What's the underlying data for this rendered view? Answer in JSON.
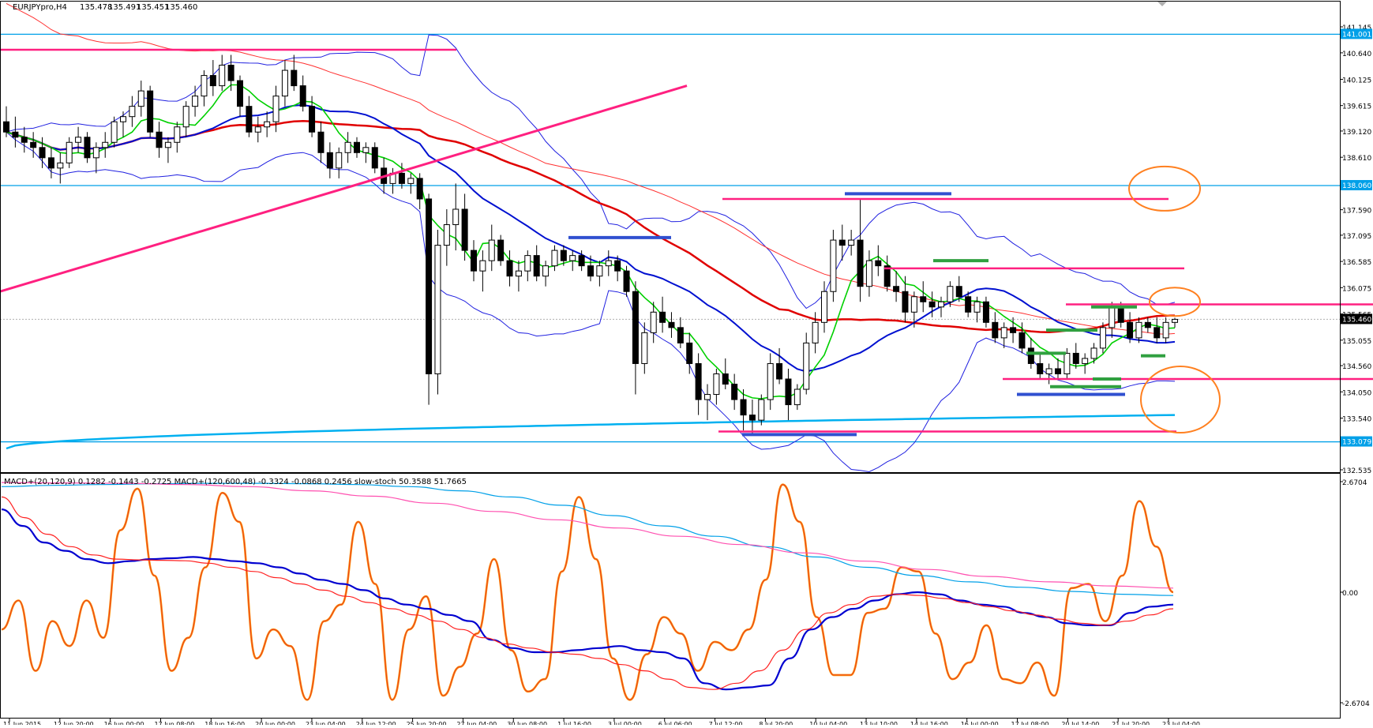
{
  "chart_data": [
    {
      "type": "candlestick",
      "header": {
        "symbol_label": "EURJPYpro,H4",
        "ohlc": [
          "135.478",
          "135.491",
          "135.451",
          "135.460"
        ]
      },
      "y_axis_ticks": [
        "141.145",
        "140.640",
        "140.125",
        "139.615",
        "139.120",
        "138.610",
        "138.060",
        "137.590",
        "137.095",
        "136.585",
        "136.075",
        "135.565",
        "135.055",
        "134.560",
        "134.050",
        "133.540",
        "133.079",
        "132.535"
      ],
      "y_axis_tick_values": [
        141.145,
        140.64,
        140.125,
        139.615,
        139.12,
        138.61,
        138.06,
        137.59,
        137.095,
        136.585,
        136.075,
        135.565,
        135.055,
        134.56,
        134.05,
        133.54,
        133.079,
        132.535
      ],
      "ylim": [
        132.535,
        141.145
      ],
      "price_labels": [
        {
          "text": "141.001",
          "value": 141.001,
          "color": "#00a0e8"
        },
        {
          "text": "138.060",
          "value": 138.06,
          "color": "#00a0e8"
        },
        {
          "text": "135.460",
          "value": 135.46,
          "color": "#000000"
        },
        {
          "text": "133.079",
          "value": 133.079,
          "color": "#00a0e8"
        }
      ],
      "horizontal_levels": [
        {
          "value": 141.001,
          "color": "#00a0e8",
          "style": "solid"
        },
        {
          "value": 138.06,
          "color": "#00a0e8",
          "style": "solid"
        },
        {
          "value": 133.079,
          "color": "#00a0e8",
          "style": "solid"
        },
        {
          "value": 135.46,
          "color": "#b0b0b0",
          "style": "dotted"
        }
      ],
      "x_axis_ticks": [
        "11 Jun 2015",
        "12 Jun 20:00",
        "16 Jun 00:00",
        "17 Jun 08:00",
        "18 Jun 16:00",
        "20 Jun 00:00",
        "23 Jun 04:00",
        "24 Jun 12:00",
        "25 Jun 20:00",
        "27 Jun 04:00",
        "30 Jun 08:00",
        "1 Jul 16:00",
        "3 Jul 00:00",
        "6 Jul 06:00",
        "7 Jul 12:00",
        "8 Jul 20:00",
        "10 Jul 04:00",
        "13 Jul 10:00",
        "14 Jul 16:00",
        "16 Jul 00:00",
        "17 Jul 08:00",
        "20 Jul 14:00",
        "21 Jul 20:00",
        "23 Jul 04:00"
      ],
      "candles": [
        [
          139.3,
          139.6,
          139.0,
          139.1
        ],
        [
          139.1,
          139.4,
          138.8,
          139.0
        ],
        [
          139.0,
          139.2,
          138.7,
          138.9
        ],
        [
          138.9,
          139.1,
          138.6,
          138.8
        ],
        [
          138.8,
          139.0,
          138.4,
          138.6
        ],
        [
          138.6,
          138.8,
          138.2,
          138.4
        ],
        [
          138.4,
          138.7,
          138.1,
          138.5
        ],
        [
          138.5,
          139.0,
          138.4,
          138.9
        ],
        [
          138.9,
          139.2,
          138.7,
          139.0
        ],
        [
          139.0,
          139.1,
          138.5,
          138.6
        ],
        [
          138.6,
          138.9,
          138.3,
          138.8
        ],
        [
          138.8,
          139.1,
          138.6,
          138.9
        ],
        [
          138.9,
          139.4,
          138.8,
          139.3
        ],
        [
          139.3,
          139.5,
          139.0,
          139.4
        ],
        [
          139.4,
          139.8,
          139.2,
          139.6
        ],
        [
          139.6,
          140.1,
          139.4,
          139.9
        ],
        [
          139.9,
          140.0,
          139.0,
          139.1
        ],
        [
          139.1,
          139.3,
          138.6,
          138.8
        ],
        [
          138.8,
          139.0,
          138.5,
          138.9
        ],
        [
          138.9,
          139.3,
          138.7,
          139.2
        ],
        [
          139.2,
          139.7,
          139.0,
          139.6
        ],
        [
          139.6,
          140.0,
          139.4,
          139.8
        ],
        [
          139.8,
          140.3,
          139.6,
          140.2
        ],
        [
          140.2,
          140.5,
          139.8,
          140.0
        ],
        [
          140.0,
          140.6,
          139.9,
          140.4
        ],
        [
          140.4,
          140.6,
          139.9,
          140.1
        ],
        [
          140.1,
          140.2,
          139.4,
          139.6
        ],
        [
          139.6,
          139.8,
          139.0,
          139.1
        ],
        [
          139.1,
          139.4,
          138.9,
          139.2
        ],
        [
          139.2,
          139.5,
          139.0,
          139.3
        ],
        [
          139.3,
          140.0,
          139.1,
          139.8
        ],
        [
          139.8,
          140.5,
          139.6,
          140.3
        ],
        [
          140.3,
          140.6,
          139.9,
          140.0
        ],
        [
          140.0,
          140.2,
          139.5,
          139.6
        ],
        [
          139.6,
          139.8,
          139.0,
          139.1
        ],
        [
          139.1,
          139.3,
          138.5,
          138.7
        ],
        [
          138.7,
          138.9,
          138.2,
          138.4
        ],
        [
          138.4,
          138.8,
          138.2,
          138.7
        ],
        [
          138.7,
          139.1,
          138.5,
          138.9
        ],
        [
          138.9,
          139.0,
          138.6,
          138.7
        ],
        [
          138.7,
          138.9,
          138.5,
          138.8
        ],
        [
          138.8,
          138.9,
          138.3,
          138.4
        ],
        [
          138.4,
          138.6,
          137.9,
          138.1
        ],
        [
          138.1,
          138.4,
          137.9,
          138.3
        ],
        [
          138.3,
          138.5,
          138.0,
          138.1
        ],
        [
          138.1,
          138.3,
          137.9,
          138.2
        ],
        [
          138.2,
          138.3,
          137.6,
          137.8
        ],
        [
          137.8,
          137.9,
          133.8,
          134.4
        ],
        [
          134.4,
          137.2,
          134.0,
          136.9
        ],
        [
          136.9,
          137.6,
          136.5,
          137.3
        ],
        [
          137.3,
          138.1,
          136.8,
          137.6
        ],
        [
          137.6,
          137.9,
          136.6,
          136.8
        ],
        [
          136.8,
          137.0,
          136.2,
          136.4
        ],
        [
          136.4,
          136.8,
          136.0,
          136.6
        ],
        [
          136.6,
          137.3,
          136.4,
          137.0
        ],
        [
          137.0,
          137.1,
          136.5,
          136.6
        ],
        [
          136.6,
          136.8,
          136.1,
          136.3
        ],
        [
          136.3,
          136.6,
          136.0,
          136.4
        ],
        [
          136.4,
          136.8,
          136.2,
          136.7
        ],
        [
          136.7,
          136.9,
          136.2,
          136.3
        ],
        [
          136.3,
          136.6,
          136.1,
          136.5
        ],
        [
          136.5,
          136.9,
          136.4,
          136.8
        ],
        [
          136.8,
          136.9,
          136.5,
          136.6
        ],
        [
          136.6,
          136.8,
          136.4,
          136.7
        ],
        [
          136.7,
          136.8,
          136.4,
          136.5
        ],
        [
          136.5,
          136.7,
          136.2,
          136.3
        ],
        [
          136.3,
          136.6,
          136.1,
          136.5
        ],
        [
          136.5,
          136.8,
          136.3,
          136.6
        ],
        [
          136.6,
          136.7,
          136.2,
          136.4
        ],
        [
          136.4,
          136.5,
          135.9,
          136.0
        ],
        [
          136.0,
          136.2,
          134.0,
          134.6
        ],
        [
          134.6,
          135.4,
          134.4,
          135.2
        ],
        [
          135.2,
          135.8,
          135.0,
          135.6
        ],
        [
          135.6,
          135.9,
          135.2,
          135.4
        ],
        [
          135.4,
          135.6,
          135.1,
          135.3
        ],
        [
          135.3,
          135.5,
          134.9,
          135.0
        ],
        [
          135.0,
          135.2,
          134.4,
          134.6
        ],
        [
          134.6,
          134.8,
          133.6,
          133.9
        ],
        [
          133.9,
          134.2,
          133.5,
          134.0
        ],
        [
          134.0,
          134.5,
          133.8,
          134.4
        ],
        [
          134.4,
          134.7,
          134.1,
          134.2
        ],
        [
          134.2,
          134.4,
          133.7,
          133.9
        ],
        [
          133.9,
          134.1,
          133.3,
          133.6
        ],
        [
          133.6,
          133.9,
          133.2,
          133.5
        ],
        [
          133.5,
          134.0,
          133.4,
          133.9
        ],
        [
          133.9,
          134.8,
          133.7,
          134.6
        ],
        [
          134.6,
          134.9,
          134.2,
          134.3
        ],
        [
          134.3,
          134.5,
          133.5,
          133.8
        ],
        [
          133.8,
          134.2,
          133.7,
          134.1
        ],
        [
          134.1,
          135.2,
          134.0,
          135.0
        ],
        [
          135.0,
          135.6,
          134.8,
          135.4
        ],
        [
          135.4,
          136.2,
          135.2,
          136.0
        ],
        [
          136.0,
          137.2,
          135.8,
          137.0
        ],
        [
          137.0,
          137.3,
          136.6,
          136.9
        ],
        [
          136.9,
          137.2,
          136.7,
          137.0
        ],
        [
          137.0,
          137.8,
          135.8,
          136.1
        ],
        [
          136.1,
          136.8,
          135.9,
          136.6
        ],
        [
          136.6,
          136.9,
          136.3,
          136.5
        ],
        [
          136.5,
          136.7,
          136.0,
          136.1
        ],
        [
          136.1,
          136.4,
          135.8,
          136.0
        ],
        [
          136.0,
          136.3,
          135.4,
          135.6
        ],
        [
          135.6,
          136.0,
          135.3,
          135.9
        ],
        [
          135.9,
          136.2,
          135.6,
          135.8
        ],
        [
          135.8,
          136.0,
          135.5,
          135.7
        ],
        [
          135.7,
          135.9,
          135.5,
          135.8
        ],
        [
          135.8,
          136.2,
          135.7,
          136.1
        ],
        [
          136.1,
          136.3,
          135.8,
          135.9
        ],
        [
          135.9,
          136.0,
          135.5,
          135.6
        ],
        [
          135.6,
          135.9,
          135.4,
          135.8
        ],
        [
          135.8,
          135.9,
          135.3,
          135.4
        ],
        [
          135.4,
          135.6,
          135.0,
          135.1
        ],
        [
          135.1,
          135.4,
          134.9,
          135.3
        ],
        [
          135.3,
          135.5,
          135.0,
          135.2
        ],
        [
          135.2,
          135.4,
          134.8,
          134.9
        ],
        [
          134.9,
          135.1,
          134.5,
          134.6
        ],
        [
          134.6,
          134.8,
          134.3,
          134.4
        ],
        [
          134.4,
          134.6,
          134.2,
          134.5
        ],
        [
          134.5,
          134.7,
          134.3,
          134.4
        ],
        [
          134.4,
          134.9,
          134.3,
          134.8
        ],
        [
          134.8,
          135.0,
          134.5,
          134.6
        ],
        [
          134.6,
          134.8,
          134.4,
          134.7
        ],
        [
          134.7,
          135.0,
          134.6,
          134.9
        ],
        [
          134.9,
          135.4,
          134.8,
          135.3
        ],
        [
          135.3,
          135.8,
          135.1,
          135.7
        ],
        [
          135.7,
          135.8,
          135.3,
          135.4
        ],
        [
          135.4,
          135.6,
          135.0,
          135.1
        ],
        [
          135.1,
          135.5,
          135.0,
          135.4
        ],
        [
          135.4,
          135.5,
          135.2,
          135.3
        ],
        [
          135.3,
          135.5,
          135.0,
          135.1
        ],
        [
          135.1,
          135.5,
          135.0,
          135.4
        ],
        [
          135.4,
          135.49,
          135.3,
          135.46
        ]
      ]
    },
    {
      "type": "line",
      "header": {
        "label": "MACD+(20,120,9) 0.1282 -0.1443 -0.2725  MACD+(120,600,48) -0.3324 -0.0868 0.2456  slow-stoch 50.3588 51.7665"
      },
      "y_axis_ticks": [
        "2.6704",
        "0.00",
        "-2.6704"
      ],
      "y_axis_tick_values": [
        2.6704,
        0,
        -2.6704
      ],
      "ylim": [
        -2.6704,
        2.6704
      ],
      "series": [
        {
          "color": "#ff8c00",
          "values": [
            -0.9,
            -0.2,
            -1.9,
            -0.7,
            -1.3,
            -0.2,
            -1.1,
            1.5,
            2.5,
            0.4,
            -1.9,
            -1.1,
            0.6,
            2.4,
            1.7,
            -1.6,
            -0.9,
            -1.3,
            -2.6,
            -0.7,
            -0.3,
            1.7,
            0.2,
            -2.6,
            -0.9,
            -0.1,
            -2.5,
            -1.8,
            -1.0,
            0.8,
            -1.4,
            -2.4,
            -2.1,
            0.5,
            2.3,
            0.8,
            -1.6,
            -2.6,
            -1.5,
            -0.6,
            -1.0,
            -1.9,
            -1.2,
            -1.4,
            -0.9,
            0.3,
            2.6,
            1.7,
            -0.6,
            -2.0,
            -2.0,
            -0.5,
            -0.4,
            0.6,
            0.5,
            -1.0,
            -2.1,
            -1.7,
            -0.8,
            -2.1,
            -2.2,
            -1.7,
            -2.5,
            0.1,
            0.2,
            -0.7,
            0.4,
            2.2,
            1.1,
            0.0
          ]
        },
        {
          "color": "#0000d0",
          "values": [
            2.0,
            1.6,
            1.2,
            1.0,
            0.8,
            0.7,
            0.75,
            0.8,
            0.82,
            0.85,
            0.8,
            0.75,
            0.7,
            0.6,
            0.45,
            0.3,
            0.2,
            0.05,
            -0.15,
            -0.3,
            -0.4,
            -0.55,
            -0.7,
            -1.15,
            -1.35,
            -1.45,
            -1.45,
            -1.4,
            -1.35,
            -1.3,
            -1.4,
            -1.45,
            -1.6,
            -2.2,
            -2.35,
            -2.3,
            -2.25,
            -1.6,
            -0.9,
            -0.6,
            -0.4,
            -0.2,
            -0.05,
            0.0,
            -0.05,
            -0.2,
            -0.3,
            -0.35,
            -0.5,
            -0.6,
            -0.75,
            -0.8,
            -0.8,
            -0.5,
            -0.35,
            -0.3
          ]
        },
        {
          "color": "#ff2020",
          "values": [
            2.3,
            1.8,
            1.4,
            1.1,
            0.9,
            0.8,
            0.78,
            0.77,
            0.76,
            0.7,
            0.6,
            0.5,
            0.35,
            0.2,
            0.05,
            -0.1,
            -0.25,
            -0.4,
            -0.55,
            -0.7,
            -0.9,
            -1.1,
            -1.25,
            -1.35,
            -1.45,
            -1.5,
            -1.6,
            -1.75,
            -1.9,
            -2.1,
            -2.3,
            -2.35,
            -2.2,
            -1.9,
            -1.4,
            -0.9,
            -0.5,
            -0.3,
            -0.1,
            -0.05,
            -0.08,
            -0.15,
            -0.25,
            -0.35,
            -0.45,
            -0.55,
            -0.65,
            -0.75,
            -0.8,
            -0.7,
            -0.55,
            -0.4
          ]
        },
        {
          "color": "#00a0e8",
          "values": [
            2.55,
            2.58,
            2.6,
            2.62,
            2.63,
            2.63,
            2.62,
            2.6,
            2.55,
            2.45,
            2.3,
            2.1,
            1.85,
            1.6,
            1.35,
            1.1,
            0.85,
            0.6,
            0.4,
            0.25,
            0.12,
            0.02,
            -0.05,
            -0.08
          ]
        },
        {
          "color": "#ff50b0",
          "values": [
            2.65,
            2.64,
            2.63,
            2.6,
            2.55,
            2.45,
            2.32,
            2.15,
            1.95,
            1.75,
            1.55,
            1.35,
            1.15,
            0.95,
            0.75,
            0.55,
            0.38,
            0.25,
            0.15,
            0.1
          ]
        }
      ]
    }
  ]
}
